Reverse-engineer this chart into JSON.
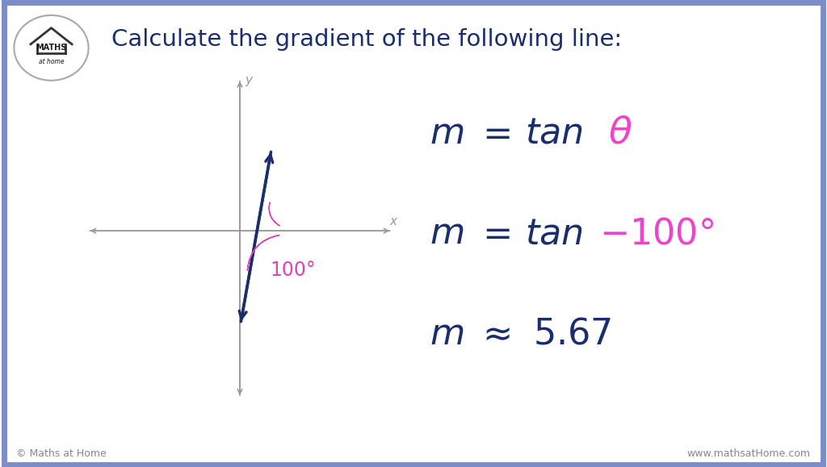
{
  "title": "Calculate the gradient of the following line:",
  "title_color": "#1a2e6e",
  "title_fontsize": 21,
  "background_color": "#ffffff",
  "border_color": "#7b8cc8",
  "line_color": "#1a2e6e",
  "axis_color": "#999999",
  "arrow_color": "#dd44bb",
  "angle_label": "100°",
  "eq_color": "#1a2e6e",
  "eq_highlight_color": "#ee44cc",
  "eq_fontsize": 32,
  "logo_text1": "MATHS",
  "logo_text2": "at home",
  "footer_left": "© Maths at Home",
  "footer_right": "www.mathsatHome.com",
  "footer_color": "#888888",
  "footer_fontsize": 9
}
